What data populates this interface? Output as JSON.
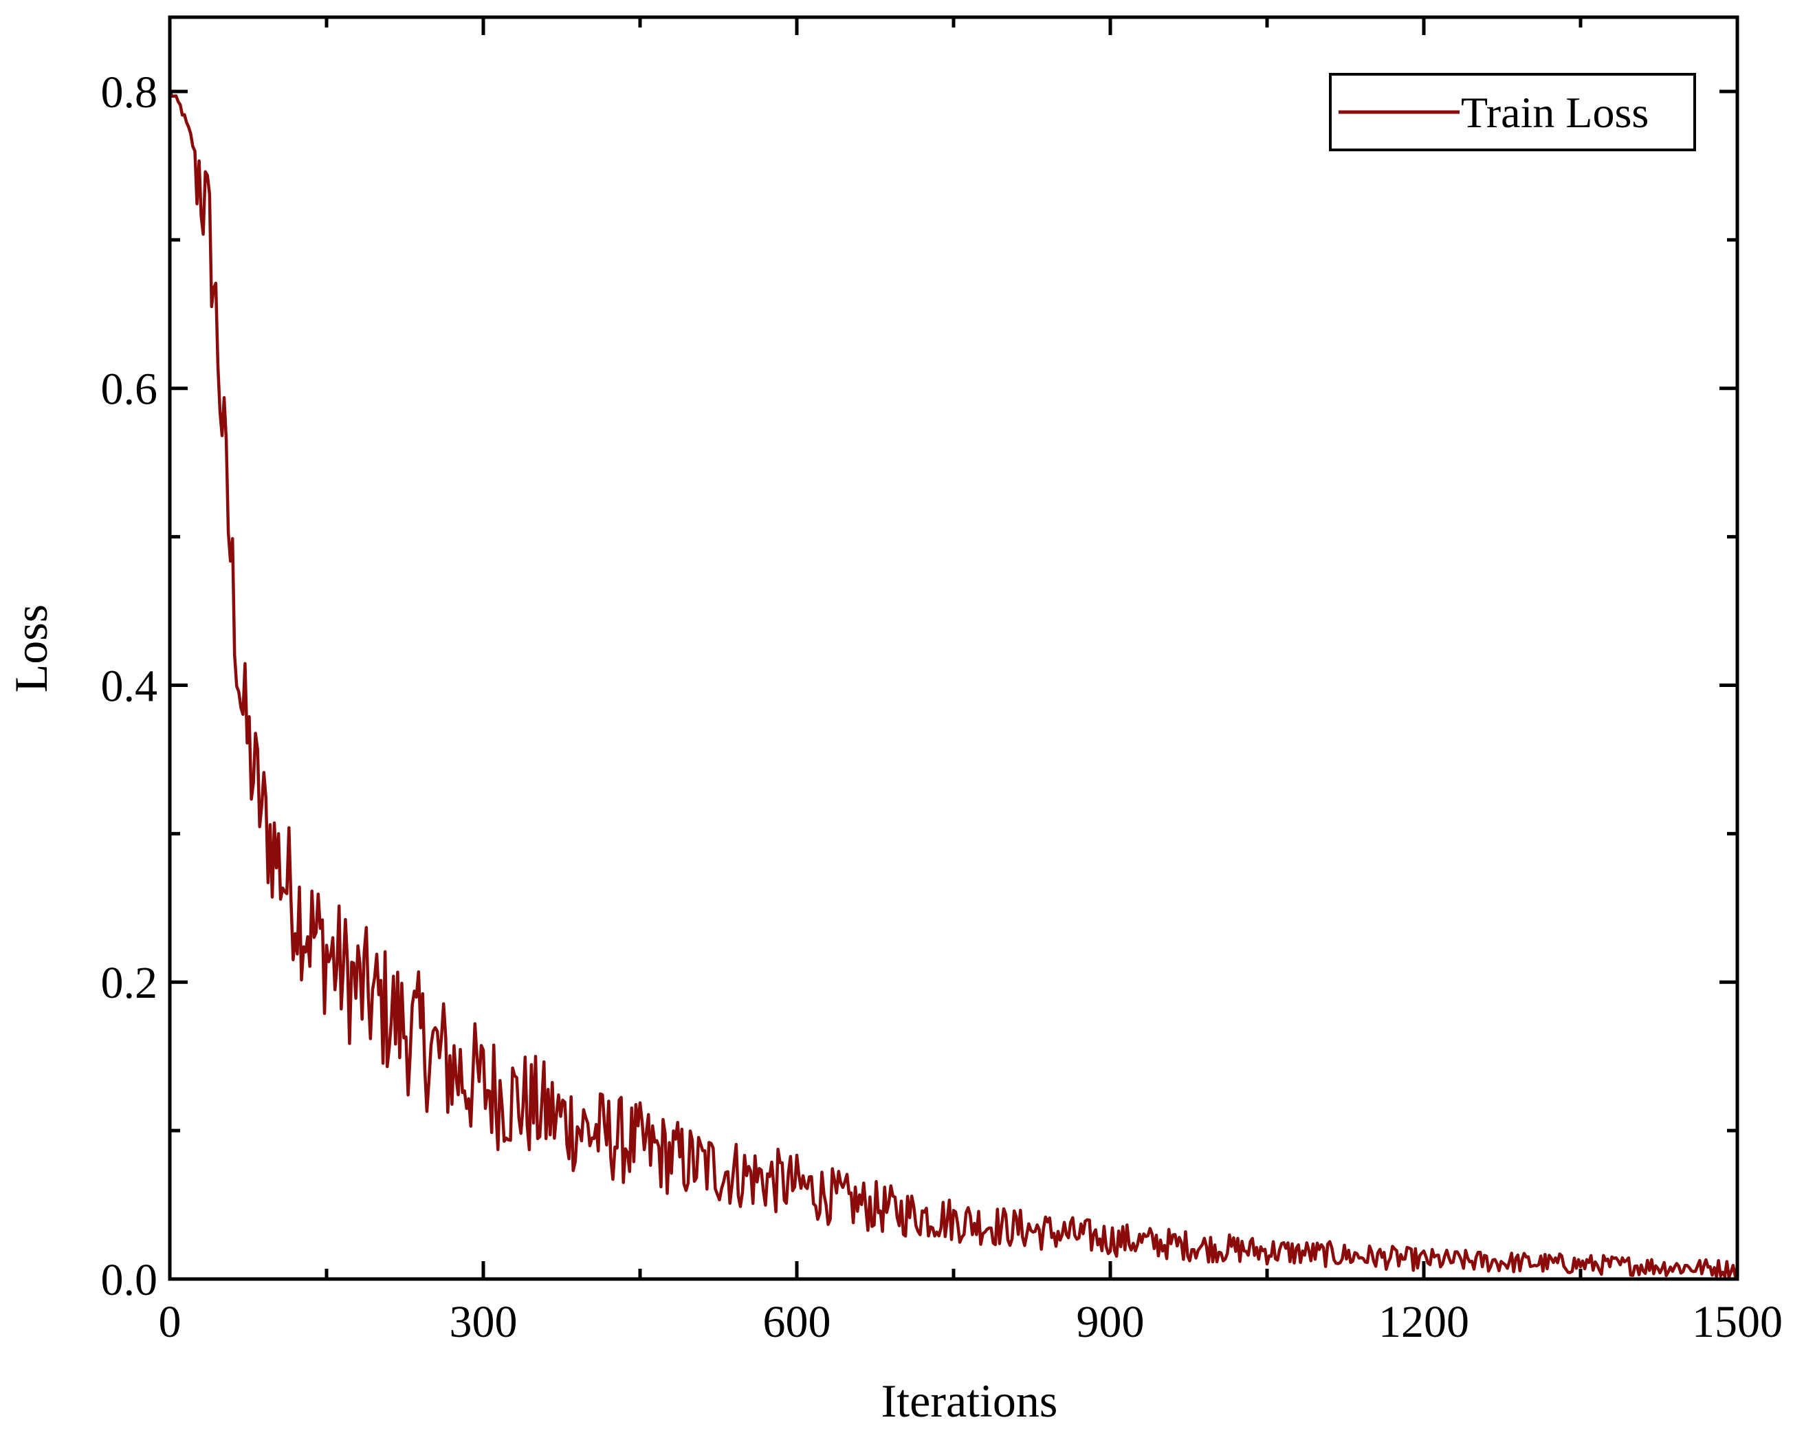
{
  "chart_data": {
    "type": "line",
    "title": "",
    "xlabel": "Iterations",
    "ylabel": "Loss",
    "xlim": [
      0,
      1500
    ],
    "ylim": [
      0.0,
      0.85
    ],
    "xticks": [
      0,
      300,
      600,
      900,
      1200,
      1500
    ],
    "xtick_labels": [
      "0",
      "300",
      "600",
      "900",
      "1200",
      "1500"
    ],
    "yticks": [
      0.0,
      0.2,
      0.4,
      0.6,
      0.8
    ],
    "ytick_labels": [
      "0.0",
      "0.2",
      "0.4",
      "0.6",
      "0.8"
    ],
    "grid": false,
    "legend": {
      "placement": "top-right",
      "entries": [
        "Train Loss"
      ]
    },
    "series": [
      {
        "name": "Train Loss",
        "color": "#8B0A0A",
        "x": [
          0,
          10,
          20,
          30,
          40,
          45,
          50,
          55,
          60,
          65,
          70,
          80,
          90,
          100,
          110,
          120,
          130,
          140,
          150,
          175,
          200,
          225,
          250,
          275,
          300,
          350,
          400,
          450,
          500,
          550,
          600,
          650,
          700,
          750,
          800,
          850,
          900,
          950,
          1000,
          1050,
          1100,
          1150,
          1200,
          1250,
          1300,
          1350,
          1400,
          1450,
          1500
        ],
        "y": [
          0.8,
          0.79,
          0.77,
          0.74,
          0.69,
          0.64,
          0.58,
          0.52,
          0.47,
          0.42,
          0.38,
          0.34,
          0.31,
          0.29,
          0.27,
          0.255,
          0.24,
          0.23,
          0.22,
          0.2,
          0.185,
          0.17,
          0.155,
          0.14,
          0.13,
          0.115,
          0.1,
          0.09,
          0.078,
          0.07,
          0.063,
          0.052,
          0.045,
          0.04,
          0.035,
          0.031,
          0.027,
          0.024,
          0.021,
          0.019,
          0.017,
          0.015,
          0.013,
          0.012,
          0.011,
          0.01,
          0.009,
          0.008,
          0.007
        ]
      }
    ]
  }
}
